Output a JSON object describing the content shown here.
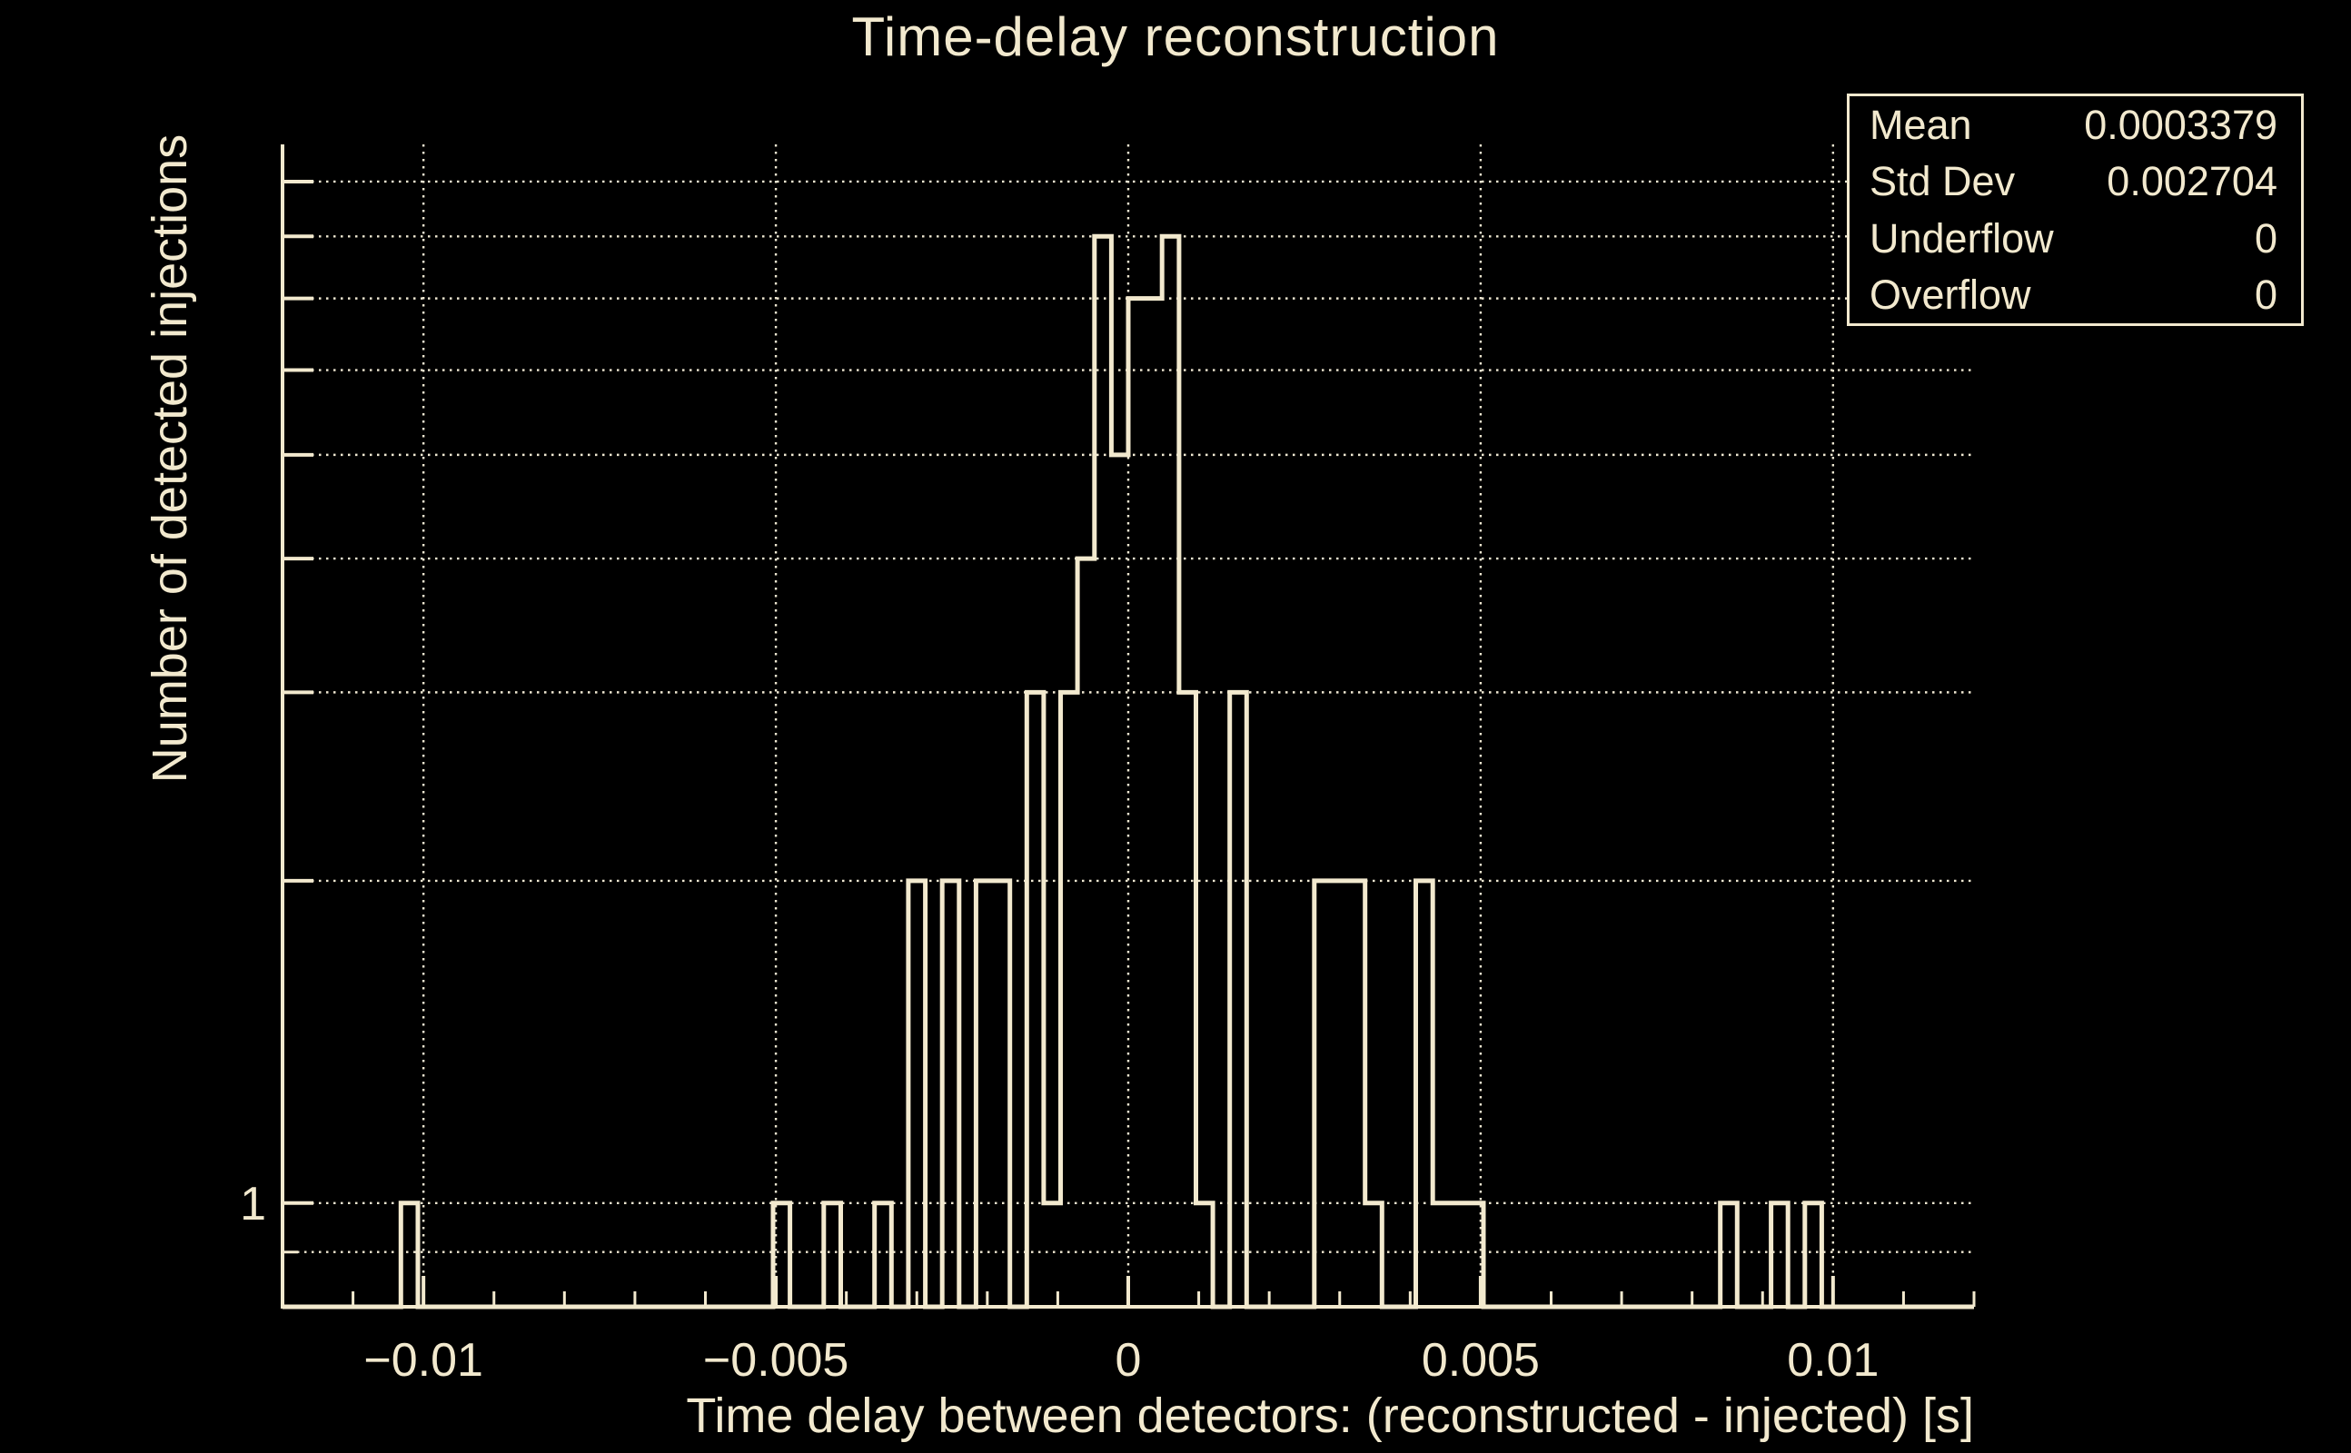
{
  "page": {
    "background_color": "#000000",
    "accent_color": "#f2e9ce"
  },
  "chart_data": {
    "type": "bar",
    "subtype": "step-histogram",
    "title": "Time-delay reconstruction",
    "xlabel": "Time delay between detectors: (reconstructed - injected) [s]",
    "ylabel": "Number of detected injections",
    "x_range": [
      -0.012,
      0.012
    ],
    "y_range": [
      0.8,
      9.75
    ],
    "y_scale": "log",
    "grid": true,
    "legend_position": "none",
    "bin_width": 0.00024,
    "first_bin_start": -0.012,
    "counts": [
      0,
      0,
      0,
      0,
      0,
      0,
      0,
      1,
      0,
      0,
      0,
      0,
      0,
      0,
      0,
      0,
      0,
      0,
      0,
      0,
      0,
      0,
      0,
      0,
      0,
      0,
      0,
      0,
      0,
      1,
      0,
      0,
      1,
      0,
      0,
      1,
      0,
      2,
      0,
      2,
      0,
      2,
      2,
      0,
      3,
      1,
      3,
      4,
      8,
      5,
      7,
      7,
      8,
      3,
      1,
      0,
      3,
      0,
      0,
      0,
      0,
      2,
      2,
      2,
      1,
      0,
      0,
      2,
      1,
      1,
      1,
      0,
      0,
      0,
      0,
      0,
      0,
      0,
      0,
      0,
      0,
      0,
      0,
      0,
      0,
      1,
      0,
      0,
      1,
      0,
      1,
      0,
      0,
      0,
      0,
      0,
      0,
      0,
      0,
      0
    ],
    "x_major_ticks": [
      -0.01,
      -0.005,
      0,
      0.005,
      0.01
    ],
    "x_tick_labels": [
      "−0.01",
      "−0.005",
      "0",
      "0.005",
      "0.01"
    ],
    "x_minor_tick_step": 0.001,
    "y_gridline_values": [
      0.9,
      1,
      2,
      3,
      4,
      5,
      6,
      7,
      8,
      9
    ],
    "y_major_tick_values": [
      1,
      2,
      3,
      4,
      5,
      6,
      7,
      8,
      9
    ],
    "y_minor_tick_values": [
      0.9
    ],
    "y_labeled_ticks": [
      {
        "value": 1,
        "label": "1"
      }
    ],
    "line_color": "#f2e9ce",
    "grid_color": "#efe8d2",
    "text_color": "#f2e9ce"
  },
  "stats": {
    "rows": [
      {
        "label": "Mean",
        "value": "0.0003379"
      },
      {
        "label": "Std Dev",
        "value": "0.002704"
      },
      {
        "label": "Underflow",
        "value": "0"
      },
      {
        "label": "Overflow",
        "value": "0"
      }
    ]
  }
}
